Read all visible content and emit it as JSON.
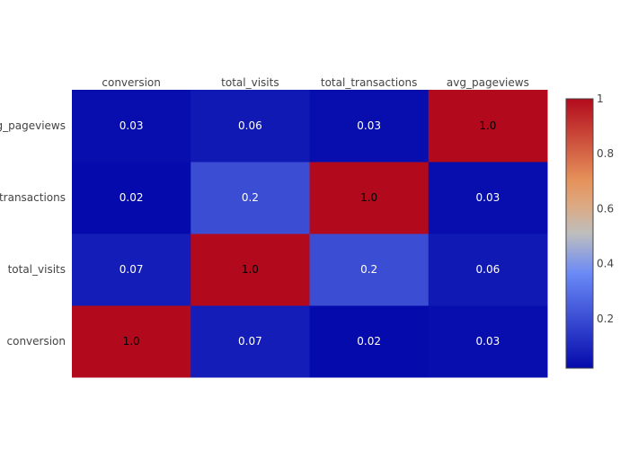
{
  "chart_data": {
    "type": "heatmap",
    "title": "",
    "x_categories": [
      "conversion",
      "total_visits",
      "total_transactions",
      "avg_pageviews"
    ],
    "y_categories": [
      "conversion",
      "total_visits",
      "total_transactions",
      "avg_pageviews"
    ],
    "values": [
      [
        1.0,
        0.07,
        0.02,
        0.03
      ],
      [
        0.07,
        1.0,
        0.2,
        0.06
      ],
      [
        0.02,
        0.2,
        1.0,
        0.03
      ],
      [
        0.03,
        0.06,
        0.03,
        1.0
      ]
    ],
    "annotations": [
      [
        "1.0",
        "0.07",
        "0.02",
        "0.03"
      ],
      [
        "0.07",
        "1.0",
        "0.2",
        "0.06"
      ],
      [
        "0.02",
        "0.2",
        "1.0",
        "0.03"
      ],
      [
        "0.03",
        "0.06",
        "0.03",
        "1.0"
      ]
    ],
    "xaxis_side": "top",
    "colorscale": "coolwarm",
    "colorbar": {
      "range": [
        0.02,
        1.0
      ],
      "ticks": [
        0.2,
        0.4,
        0.6,
        0.8,
        1
      ],
      "tick_labels": [
        "0.2",
        "0.4",
        "0.6",
        "0.8",
        "1"
      ]
    },
    "grid": false,
    "legend": "colorbar-right"
  }
}
